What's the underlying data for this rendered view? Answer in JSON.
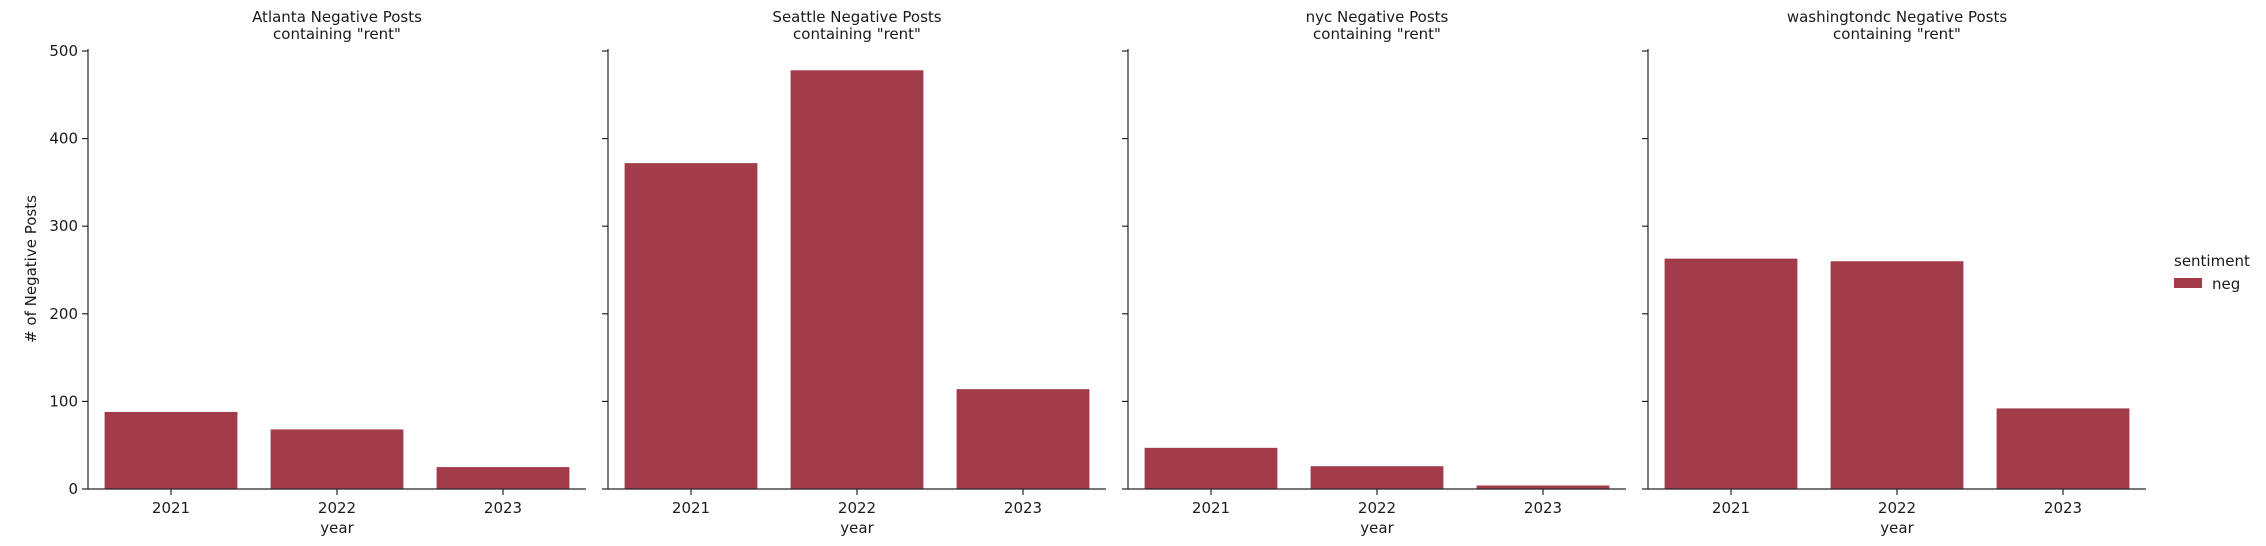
{
  "figure": {
    "bar_color": "#a23b4a",
    "ylabel": "# of Negative Posts",
    "legend": {
      "title": "sentiment",
      "entries": [
        {
          "label": "neg",
          "color": "#a23b4a"
        }
      ]
    }
  },
  "chart_data": [
    {
      "type": "bar",
      "title_lines": [
        "Atlanta Negative Posts",
        "containing \"rent\""
      ],
      "xlabel": "year",
      "ylabel": "# of Negative Posts",
      "categories": [
        "2021",
        "2022",
        "2023"
      ],
      "series": [
        {
          "name": "neg",
          "values": [
            88,
            68,
            25
          ]
        }
      ],
      "ylim": [
        0,
        500
      ],
      "yticks": [
        0,
        100,
        200,
        300,
        400,
        500
      ],
      "show_ytick_labels": true
    },
    {
      "type": "bar",
      "title_lines": [
        "Seattle Negative Posts",
        "containing \"rent\""
      ],
      "xlabel": "year",
      "ylabel": "",
      "categories": [
        "2021",
        "2022",
        "2023"
      ],
      "series": [
        {
          "name": "neg",
          "values": [
            372,
            478,
            114
          ]
        }
      ],
      "ylim": [
        0,
        500
      ],
      "yticks": [
        0,
        100,
        200,
        300,
        400,
        500
      ],
      "show_ytick_labels": false
    },
    {
      "type": "bar",
      "title_lines": [
        "nyc Negative Posts",
        "containing \"rent\""
      ],
      "xlabel": "year",
      "ylabel": "",
      "categories": [
        "2021",
        "2022",
        "2023"
      ],
      "series": [
        {
          "name": "neg",
          "values": [
            47,
            26,
            4
          ]
        }
      ],
      "ylim": [
        0,
        500
      ],
      "yticks": [
        0,
        100,
        200,
        300,
        400,
        500
      ],
      "show_ytick_labels": false
    },
    {
      "type": "bar",
      "title_lines": [
        "washingtondc Negative Posts",
        "containing \"rent\""
      ],
      "xlabel": "year",
      "ylabel": "",
      "categories": [
        "2021",
        "2022",
        "2023"
      ],
      "series": [
        {
          "name": "neg",
          "values": [
            263,
            260,
            92
          ]
        }
      ],
      "ylim": [
        0,
        500
      ],
      "yticks": [
        0,
        100,
        200,
        300,
        400,
        500
      ],
      "show_ytick_labels": false
    }
  ]
}
